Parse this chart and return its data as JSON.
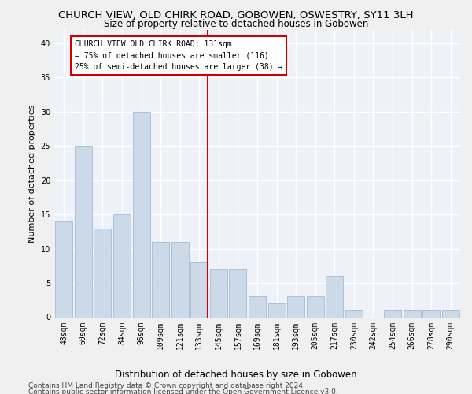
{
  "title": "CHURCH VIEW, OLD CHIRK ROAD, GOBOWEN, OSWESTRY, SY11 3LH",
  "subtitle": "Size of property relative to detached houses in Gobowen",
  "xlabel_bottom": "Distribution of detached houses by size in Gobowen",
  "ylabel": "Number of detached properties",
  "categories": [
    "48sqm",
    "60sqm",
    "72sqm",
    "84sqm",
    "96sqm",
    "109sqm",
    "121sqm",
    "133sqm",
    "145sqm",
    "157sqm",
    "169sqm",
    "181sqm",
    "193sqm",
    "205sqm",
    "217sqm",
    "230sqm",
    "242sqm",
    "254sqm",
    "266sqm",
    "278sqm",
    "290sqm"
  ],
  "values": [
    14,
    25,
    13,
    15,
    30,
    11,
    11,
    8,
    7,
    7,
    3,
    2,
    3,
    3,
    6,
    1,
    0,
    1,
    1,
    1,
    1
  ],
  "bar_color": "#ccd9e8",
  "bar_edge_color": "#9ab0c8",
  "vline_color": "#cc0000",
  "vline_index": 7,
  "annotation_title": "CHURCH VIEW OLD CHIRK ROAD: 131sqm",
  "annotation_line1": "← 75% of detached houses are smaller (116)",
  "annotation_line2": "25% of semi-detached houses are larger (38) →",
  "annotation_box_color": "#ffffff",
  "annotation_box_edge": "#cc0000",
  "ylim": [
    0,
    42
  ],
  "yticks": [
    0,
    5,
    10,
    15,
    20,
    25,
    30,
    35,
    40
  ],
  "footnote1": "Contains HM Land Registry data © Crown copyright and database right 2024.",
  "footnote2": "Contains public sector information licensed under the Open Government Licence v3.0.",
  "bg_color": "#eef2f8",
  "grid_color": "#ffffff",
  "title_fontsize": 9.5,
  "subtitle_fontsize": 8.5,
  "tick_fontsize": 7,
  "ylabel_fontsize": 8,
  "ann_fontsize": 7,
  "footnote_fontsize": 6.5
}
